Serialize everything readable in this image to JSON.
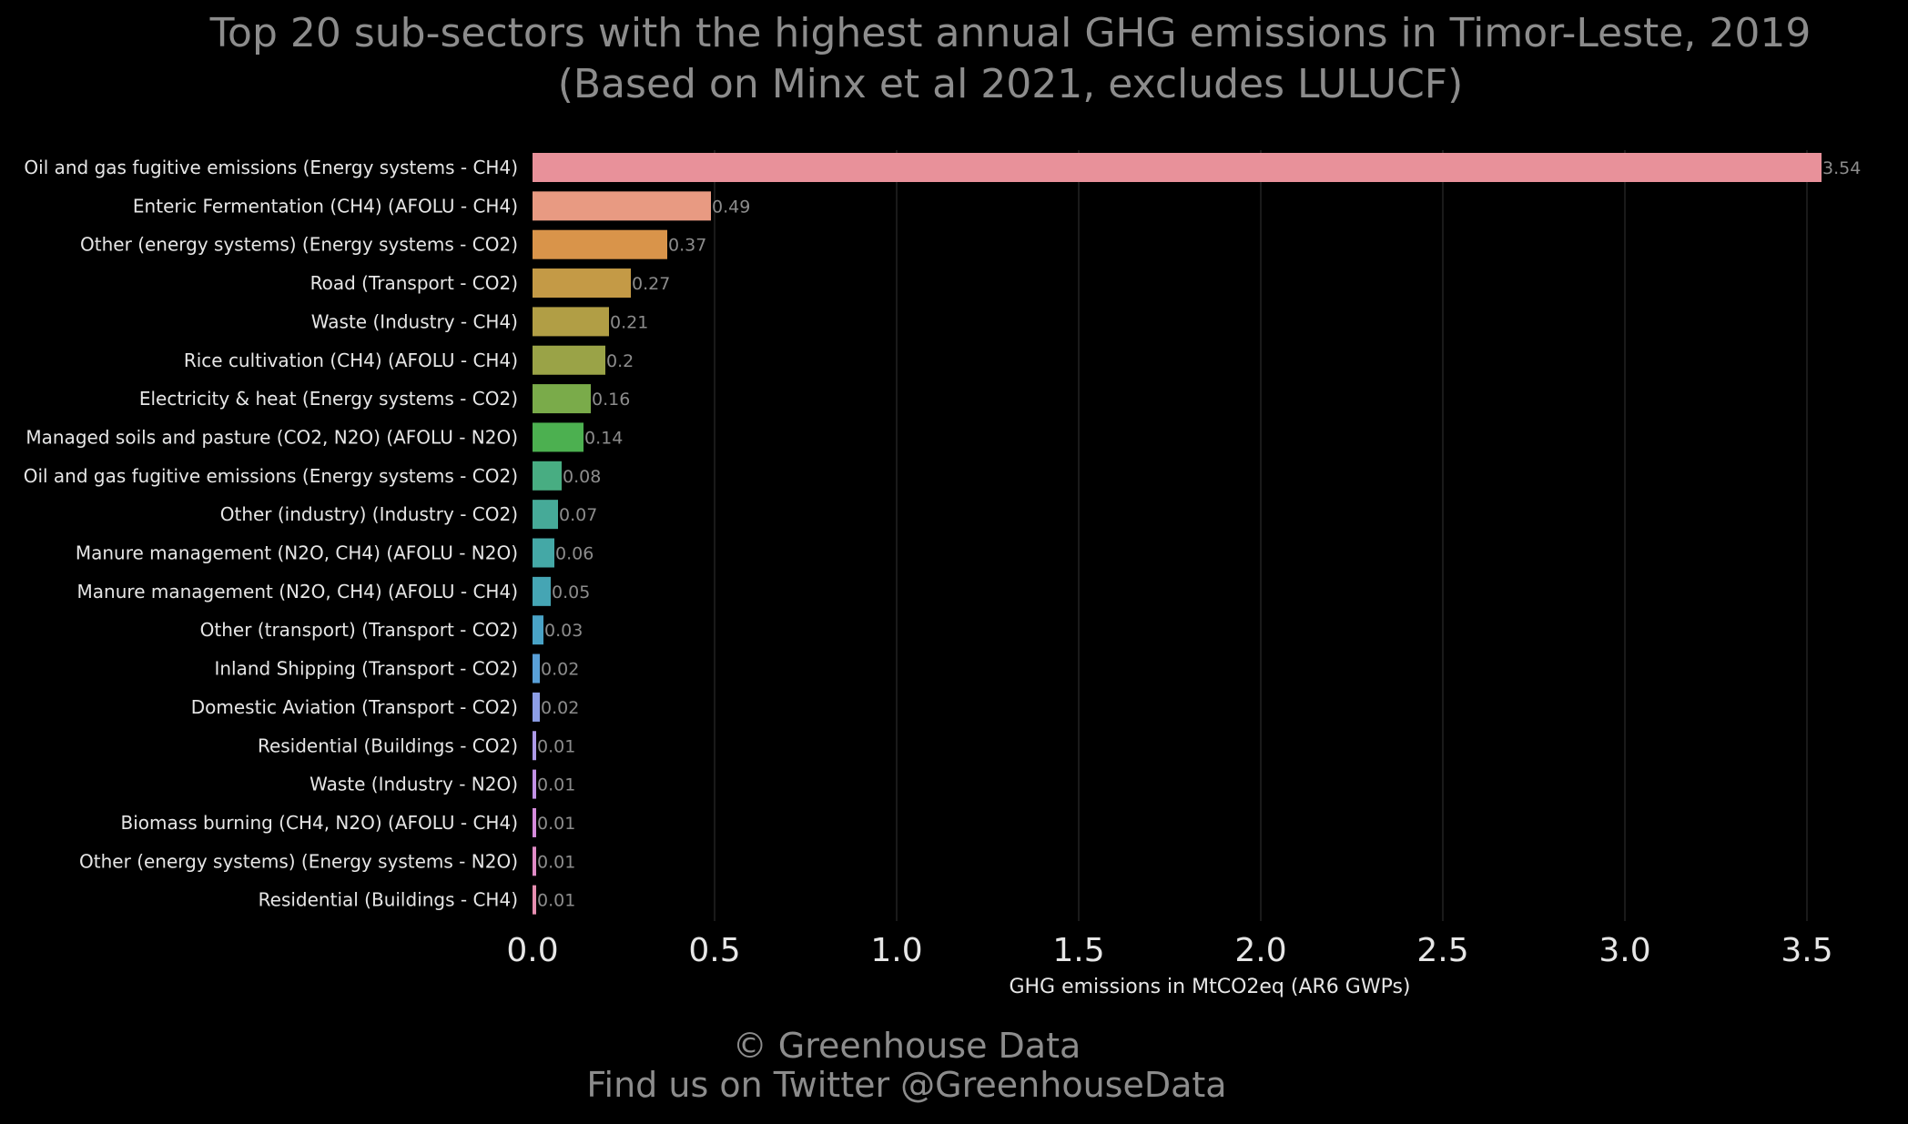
{
  "chart_data": {
    "type": "bar",
    "orientation": "horizontal",
    "title": "Top 20 sub-sectors with the highest annual GHG emissions in Timor-Leste, 2019",
    "subtitle": "(Based on Minx et al 2021, excludes LULUCF)",
    "xlabel": "GHG emissions in MtCO2eq (AR6 GWPs)",
    "ylabel": "",
    "xlim": [
      0,
      3.6
    ],
    "xticks": [
      "0.0",
      "0.5",
      "1.0",
      "1.5",
      "2.0",
      "2.5",
      "3.0",
      "3.5"
    ],
    "xtick_values": [
      0,
      0.5,
      1.0,
      1.5,
      2.0,
      2.5,
      3.0,
      3.5
    ],
    "grid": "vertical",
    "background": "#000000",
    "categories": [
      "Oil and gas fugitive emissions (Energy systems - CH4)",
      "Enteric Fermentation (CH4) (AFOLU - CH4)",
      "Other (energy systems) (Energy systems - CO2)",
      "Road (Transport - CO2)",
      "Waste (Industry - CH4)",
      "Rice cultivation (CH4) (AFOLU - CH4)",
      "Electricity & heat (Energy systems - CO2)",
      "Managed soils and pasture (CO2, N2O) (AFOLU - N2O)",
      "Oil and gas fugitive emissions (Energy systems - CO2)",
      "Other (industry) (Industry - CO2)",
      "Manure management (N2O, CH4) (AFOLU - N2O)",
      "Manure management (N2O, CH4) (AFOLU - CH4)",
      "Other (transport) (Transport - CO2)",
      "Inland Shipping (Transport - CO2)",
      "Domestic Aviation (Transport - CO2)",
      "Residential (Buildings - CO2)",
      "Waste (Industry - N2O)",
      "Biomass burning (CH4, N2O) (AFOLU - CH4)",
      "Other (energy systems) (Energy systems - N2O)",
      "Residential (Buildings - CH4)"
    ],
    "values": [
      3.54,
      0.49,
      0.37,
      0.27,
      0.21,
      0.2,
      0.16,
      0.14,
      0.08,
      0.07,
      0.06,
      0.05,
      0.03,
      0.02,
      0.02,
      0.01,
      0.01,
      0.01,
      0.01,
      0.01
    ],
    "data_labels": [
      "3.54",
      "0.49",
      "0.37",
      "0.27",
      "0.21",
      "0.2",
      "0.16",
      "0.14",
      "0.08",
      "0.07",
      "0.06",
      "0.05",
      "0.03",
      "0.02",
      "0.02",
      "0.01",
      "0.01",
      "0.01",
      "0.01",
      "0.01"
    ],
    "colors": [
      "#e8919a",
      "#e89a82",
      "#d9944a",
      "#c49a46",
      "#b19e45",
      "#9aa347",
      "#7aab4a",
      "#4cb050",
      "#48ad82",
      "#46aa98",
      "#44a8a6",
      "#45a5b4",
      "#49a3c6",
      "#59a0d8",
      "#8c9ee6",
      "#ad9ae8",
      "#c292e6",
      "#d58bdc",
      "#e08bc6",
      "#e68eb0"
    ]
  },
  "credit": {
    "line1": "© Greenhouse Data",
    "line2": "Find us on Twitter @GreenhouseData"
  }
}
